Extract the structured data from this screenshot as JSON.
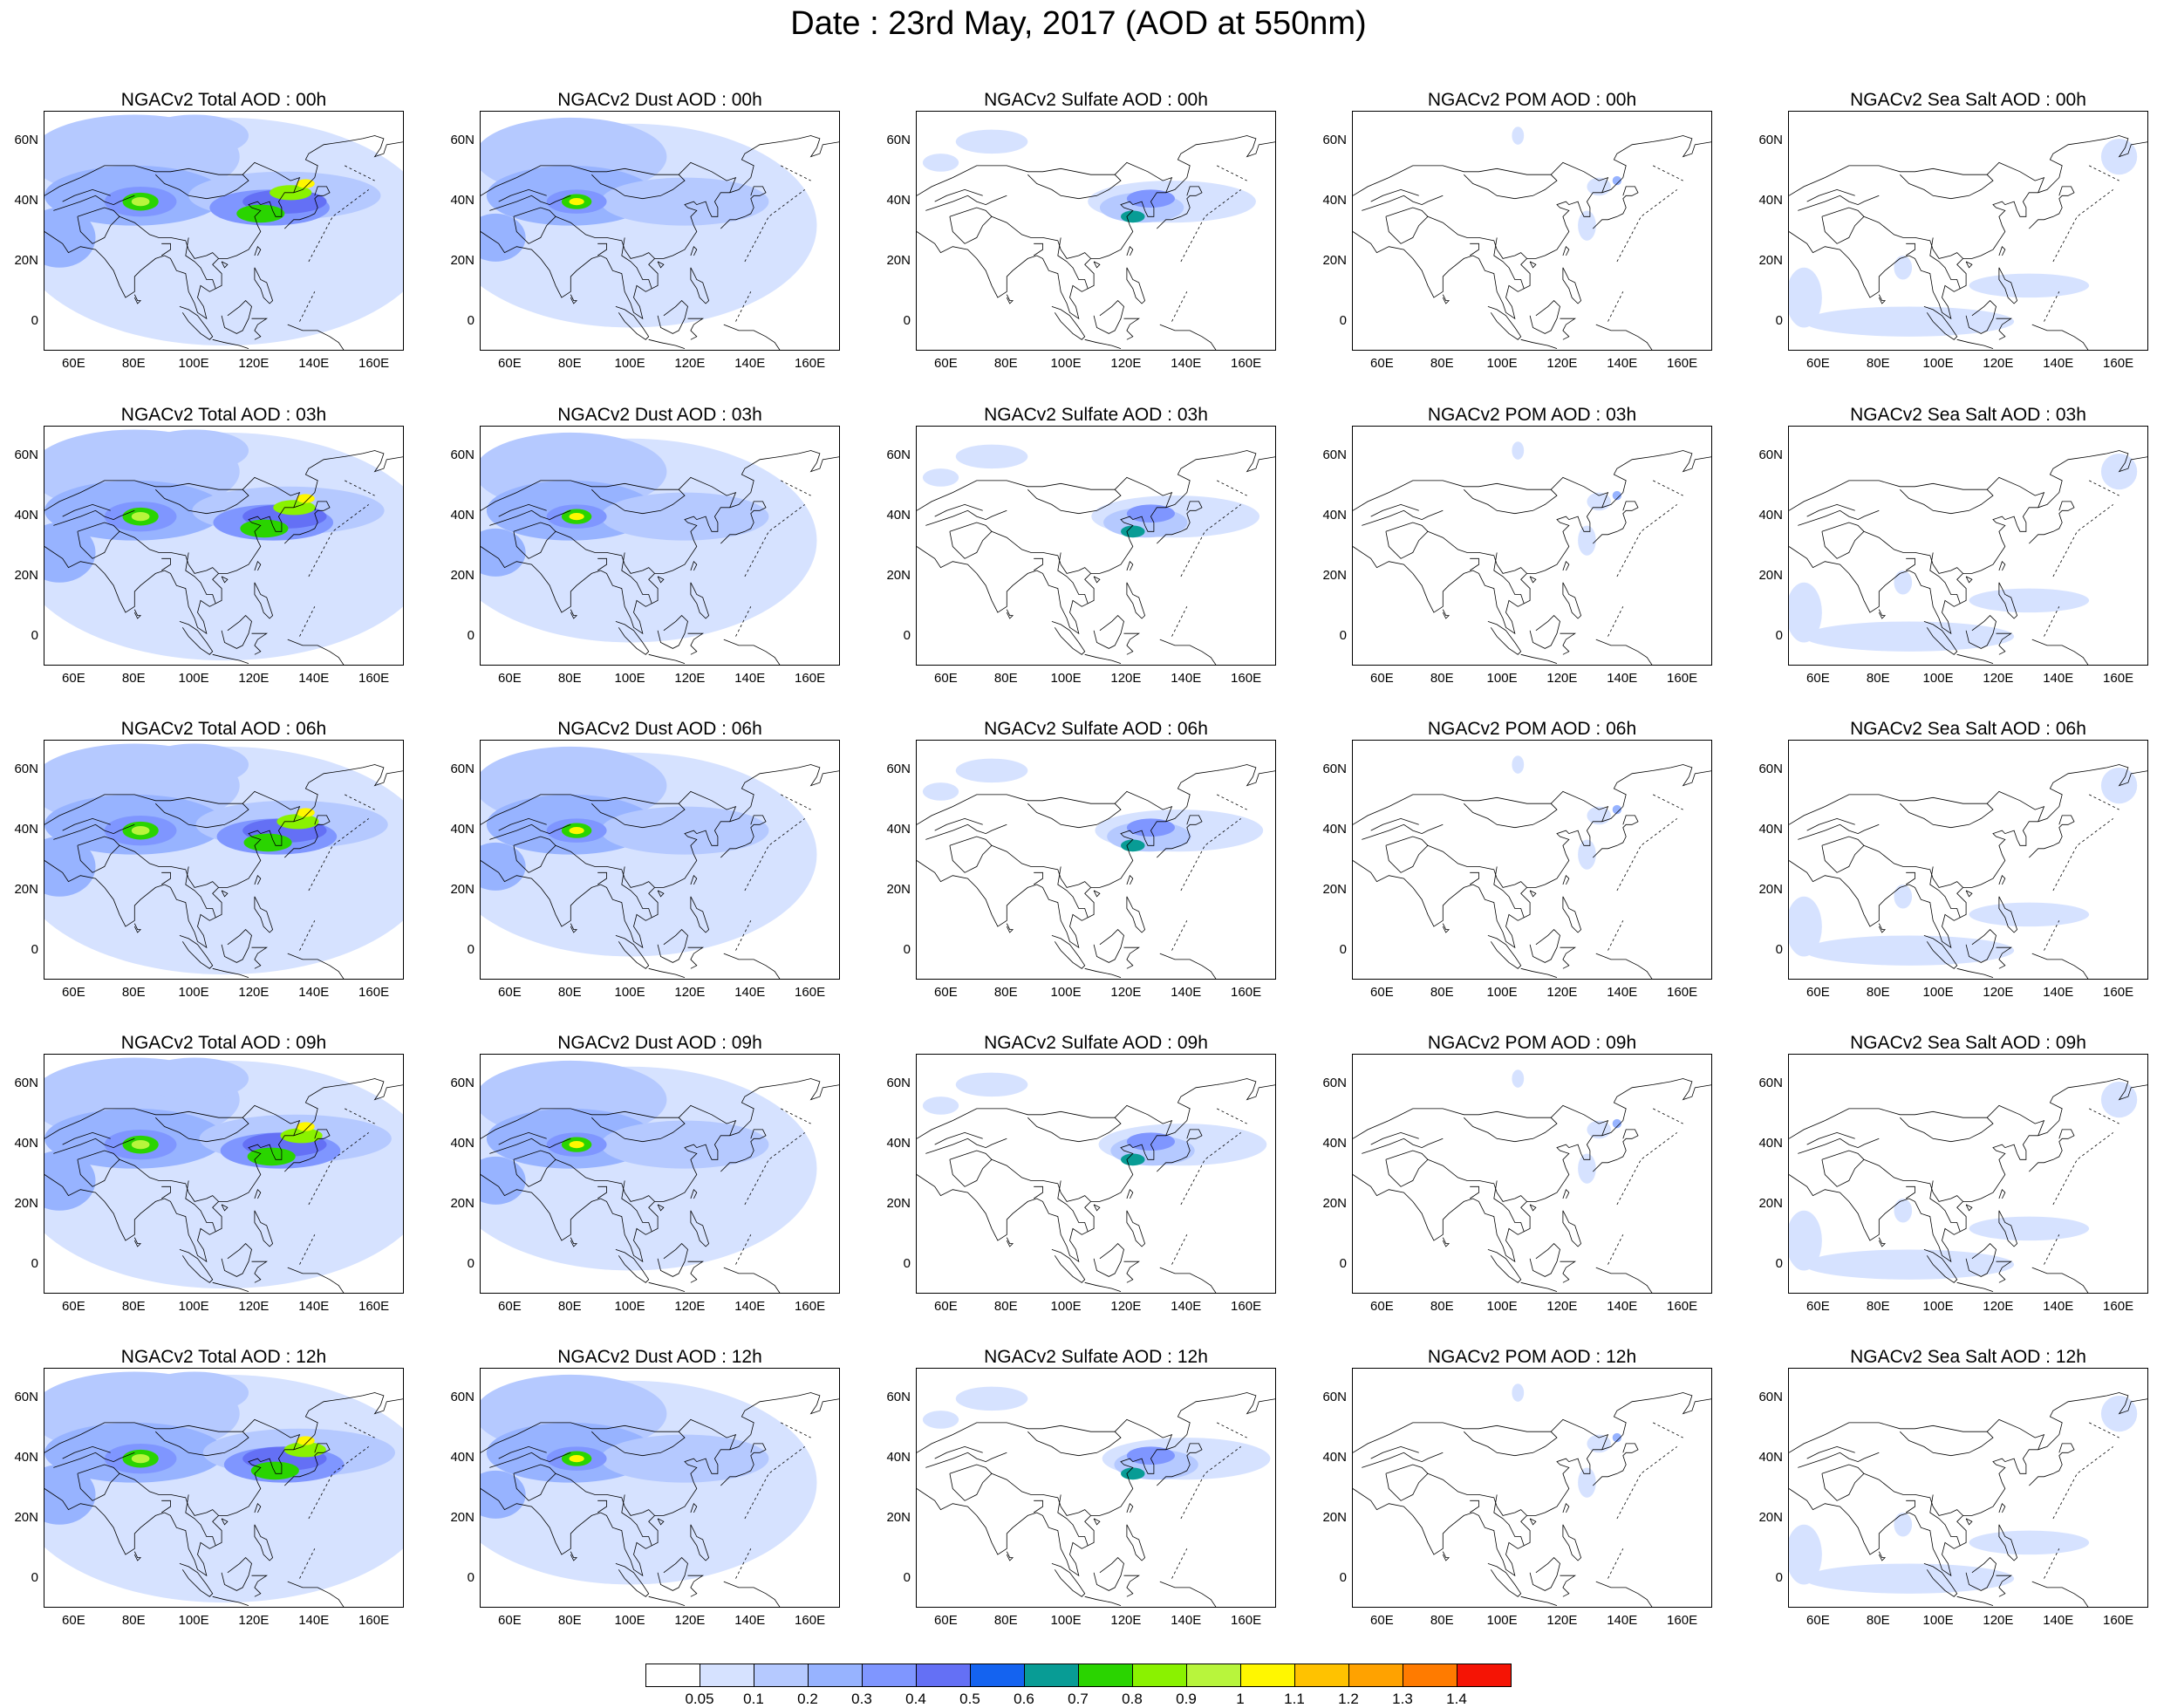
{
  "title": "Date : 23rd May, 2017 (AOD at 550nm)",
  "map_extent": {
    "lon": [
      50,
      170
    ],
    "lat": [
      -10,
      70
    ]
  },
  "x_ticks": [
    "60E",
    "80E",
    "100E",
    "120E",
    "140E",
    "160E"
  ],
  "y_ticks": [
    "60N",
    "40N",
    "20N",
    "0"
  ],
  "panels": [
    [
      "NGACv2 Total AOD : 00h",
      "NGACv2 Dust AOD : 00h",
      "NGACv2 Sulfate AOD : 00h",
      "NGACv2 POM AOD : 00h",
      "NGACv2 Sea Salt AOD : 00h"
    ],
    [
      "NGACv2 Total AOD : 03h",
      "NGACv2 Dust AOD : 03h",
      "NGACv2 Sulfate AOD : 03h",
      "NGACv2 POM AOD : 03h",
      "NGACv2 Sea Salt AOD : 03h"
    ],
    [
      "NGACv2 Total AOD : 06h",
      "NGACv2 Dust AOD : 06h",
      "NGACv2 Sulfate AOD : 06h",
      "NGACv2 POM AOD : 06h",
      "NGACv2 Sea Salt AOD : 06h"
    ],
    [
      "NGACv2 Total AOD : 09h",
      "NGACv2 Dust AOD : 09h",
      "NGACv2 Sulfate AOD : 09h",
      "NGACv2 POM AOD : 09h",
      "NGACv2 Sea Salt  AOD : 09h"
    ],
    [
      "NGACv2 Total AOD  : 12h",
      "NGACv2 Dust AOD : 12h",
      "NGACv2 Sulfate AOD : 12h",
      "NGACv2 POM  AOD : 12h",
      "NGACv2 Sea Salt  AOD : 12h"
    ]
  ],
  "colorbar": {
    "labels": [
      "0.05",
      "0.1",
      "0.2",
      "0.3",
      "0.4",
      "0.5",
      "0.6",
      "0.7",
      "0.8",
      "0.9",
      "1",
      "1.1",
      "1.2",
      "1.3",
      "1.4"
    ],
    "colors": [
      "#ffffff",
      "#d6e2ff",
      "#b5c9ff",
      "#97b3ff",
      "#7f96ff",
      "#6470f5",
      "#1463f0",
      "#089c95",
      "#2ad400",
      "#8af200",
      "#b8f53c",
      "#fff700",
      "#ffc200",
      "#ffa200",
      "#ff7b00",
      "#f51405"
    ]
  }
}
